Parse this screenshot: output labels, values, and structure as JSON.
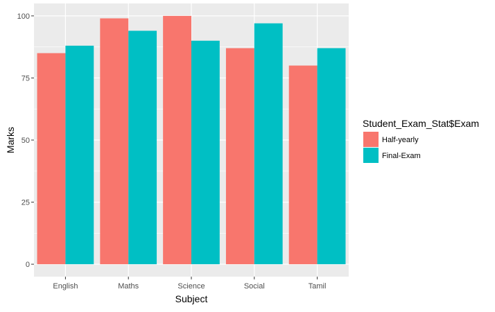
{
  "chart_data": {
    "type": "bar",
    "categories": [
      "English",
      "Maths",
      "Science",
      "Social",
      "Tamil"
    ],
    "series": [
      {
        "name": "Half-yearly",
        "values": [
          85,
          99,
          100,
          87,
          80
        ]
      },
      {
        "name": "Final-Exam",
        "values": [
          88,
          94,
          90,
          97,
          87
        ]
      }
    ],
    "xlabel": "Subject",
    "ylabel": "Marks",
    "ylim": [
      -5,
      105
    ],
    "yticks": [
      0,
      25,
      50,
      75,
      100
    ],
    "legend": {
      "title": "Student_Exam_Stat$Exam",
      "position": "right"
    },
    "grid": true,
    "colors": {
      "panel": "#ebebeb",
      "grid": "#ffffff",
      "series": [
        "#f8766d",
        "#00bfc4"
      ]
    }
  }
}
